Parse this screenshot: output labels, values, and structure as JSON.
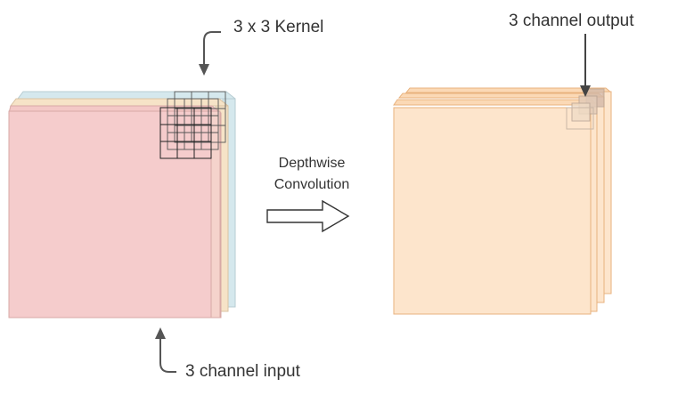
{
  "labels": {
    "kernel": "3 x 3 Kernel",
    "output": "3 channel output",
    "operation_line1": "Depthwise",
    "operation_line2": "Convolution",
    "input": "3 channel input"
  },
  "colors": {
    "input_front": "#f5cccc",
    "input_mid": "#f6e3c7",
    "input_back": "#d5e8ed",
    "output_face": "#fde5cc",
    "output_edge": "#e8b27e",
    "stroke": "#555555"
  },
  "icons": [
    "curved-arrow-icon",
    "down-arrow-icon",
    "hollow-right-arrow-icon",
    "up-arrow-icon"
  ]
}
